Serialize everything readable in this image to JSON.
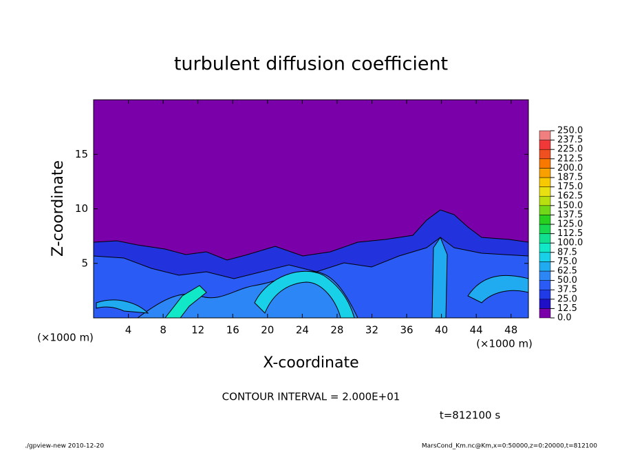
{
  "chart_data": {
    "type": "contour",
    "title": "turbulent diffusion coefficient",
    "xlabel": "X-coordinate",
    "ylabel": "Z-coordinate",
    "x_unit_left": "(×1000 m)",
    "x_unit_right": "(×1000 m)",
    "xlim": [
      0,
      50
    ],
    "ylim": [
      0,
      20
    ],
    "xticks": [
      4,
      8,
      12,
      16,
      20,
      24,
      28,
      32,
      36,
      40,
      44,
      48
    ],
    "yticks": [
      5,
      10,
      15
    ],
    "colorbar": {
      "levels": [
        {
          "value": 0,
          "label": "0.0"
        },
        {
          "value": 12.5,
          "label": "12.5"
        },
        {
          "value": 25,
          "label": "25.0"
        },
        {
          "value": 37.5,
          "label": "37.5"
        },
        {
          "value": 50,
          "label": "50.0"
        },
        {
          "value": 62.5,
          "label": "62.5"
        },
        {
          "value": 75,
          "label": "75.0"
        },
        {
          "value": 87.5,
          "label": "87.5"
        },
        {
          "value": 100,
          "label": "100.0"
        },
        {
          "value": 112.5,
          "label": "112.5"
        },
        {
          "value": 125,
          "label": "125.0"
        },
        {
          "value": 137.5,
          "label": "137.5"
        },
        {
          "value": 150,
          "label": "150.0"
        },
        {
          "value": 162.5,
          "label": "162.5"
        },
        {
          "value": 175,
          "label": "175.0"
        },
        {
          "value": 187.5,
          "label": "187.5"
        },
        {
          "value": 200,
          "label": "200.0"
        },
        {
          "value": 212.5,
          "label": "212.5"
        },
        {
          "value": 225,
          "label": "225.0"
        },
        {
          "value": 237.5,
          "label": "237.5"
        },
        {
          "value": 250,
          "label": "250.0"
        }
      ],
      "colors": [
        "#7a00aa",
        "#1f10c8",
        "#1f3ae6",
        "#2a5cf5",
        "#2d86f5",
        "#20aaf0",
        "#18d0e8",
        "#10e8c8",
        "#10e090",
        "#18d850",
        "#28d020",
        "#70d818",
        "#b8e010",
        "#e8e010",
        "#f8c800",
        "#f8a000",
        "#f87800",
        "#f05020",
        "#f03838",
        "#f08080"
      ]
    },
    "annotations": [
      "CONTOUR INTERVAL = 2.000E+01",
      "t=812100 s"
    ],
    "footer_left": "./gpview-new  2010-12-20",
    "footer_right": "MarsCond_Km.nc@Km,x=0:50000,z=0:20000,t=812100"
  }
}
